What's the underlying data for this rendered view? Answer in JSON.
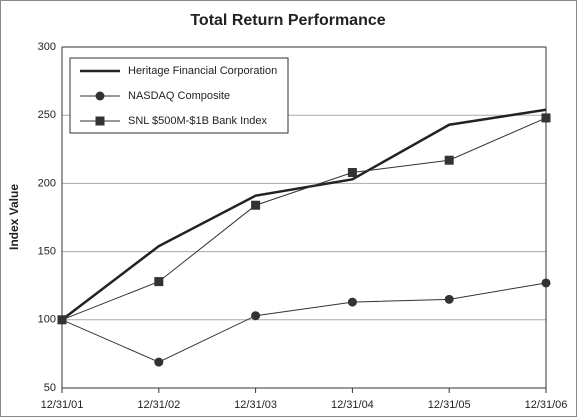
{
  "chart_data": {
    "type": "line",
    "title": "Total Return Performance",
    "y_label": "Index Value",
    "categories": [
      "12/31/01",
      "12/31/02",
      "12/31/03",
      "12/31/04",
      "12/31/05",
      "12/31/06"
    ],
    "series": [
      {
        "name": "Heritage Financial Corporation",
        "color": "#222222",
        "marker": "none",
        "line_width": 2.5,
        "values": [
          100,
          154,
          191,
          203,
          243,
          254
        ]
      },
      {
        "name": "NASDAQ Composite",
        "color": "#333333",
        "marker": "circle",
        "line_width": 1,
        "values": [
          100,
          69,
          103,
          113,
          115,
          127
        ]
      },
      {
        "name": "SNL $500M-$1B Bank Index",
        "color": "#333333",
        "marker": "square",
        "line_width": 1,
        "values": [
          100,
          128,
          184,
          208,
          217,
          248
        ]
      }
    ],
    "ylim": [
      50,
      300
    ],
    "yticks": [
      50,
      100,
      150,
      200,
      250,
      300
    ],
    "grid": true,
    "legend": "upper left"
  }
}
